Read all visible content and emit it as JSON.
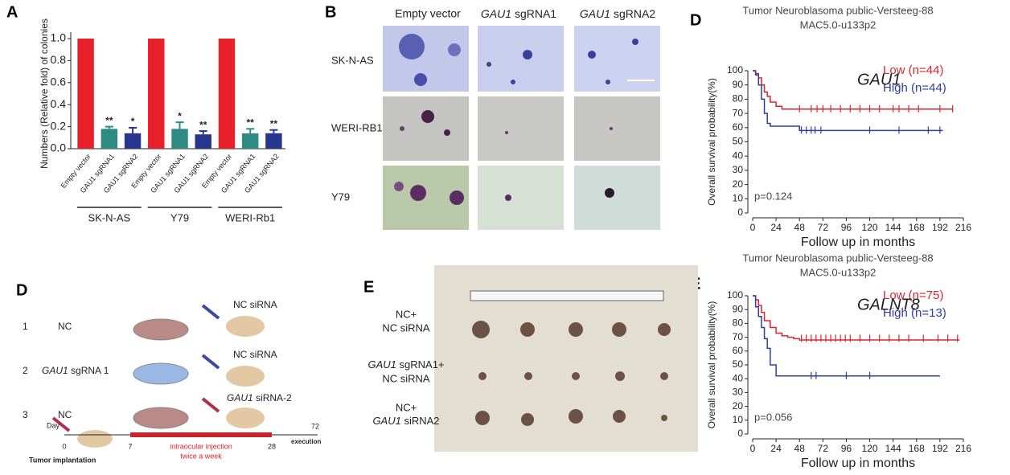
{
  "figure": {
    "panel_labels": {
      "a": "A",
      "b": "B",
      "d_km": "D",
      "d_scheme": "D",
      "e_photo": "E",
      "e_km": "E"
    },
    "panel_b": {
      "columns": [
        {
          "text": "Empty vector"
        },
        {
          "gene": "GAU1",
          "rest": "sgRNA1"
        },
        {
          "gene": "GAU1",
          "rest": "sgRNA2"
        }
      ],
      "rows": [
        "SK-N-AS",
        "WERI-RB1",
        "Y79"
      ]
    },
    "panel_d": {
      "groups": [
        {
          "number": "1",
          "cells": "NC",
          "treatment": "NC siRNA"
        },
        {
          "number": "2",
          "cells_gene": "GAU1",
          "cells": "sgRNA 1",
          "treatment": "NC siRNA"
        },
        {
          "number": "3",
          "cells": "NC",
          "treatment_gene": "GAU1",
          "treatment": "siRNA-2"
        }
      ],
      "timeline": {
        "day": "Day",
        "days": [
          "0",
          "7",
          "28",
          "72"
        ],
        "start": "Tumor implantation",
        "injection": "intraocular injection",
        "frequency": "twice a week",
        "end": "execution"
      }
    },
    "panel_e": {
      "rows": [
        {
          "line1": "NC+",
          "line2": "NC siRNA"
        },
        {
          "line1_gene": "GAU1",
          "line1": "sgRNA1+",
          "line2": "NC siRNA"
        },
        {
          "line1": "NC+",
          "line2_gene": "GAU1",
          "line2": "siRNA2"
        }
      ]
    }
  },
  "chart_data": [
    {
      "type": "bar",
      "ylabel": "Numbers (Relative fold) of colonies",
      "categories": [
        "Empty vector",
        "GAU1 sgRNA1",
        "GAU1 sgRNA2",
        "Empty vector",
        "GAU1 sgRNA1",
        "GAU1 sgRNA2",
        "Empty vector",
        "GAU1 sgRNA1",
        "GAU1 sgRNA2"
      ],
      "values": [
        1.0,
        0.18,
        0.14,
        1.0,
        0.18,
        0.13,
        1.0,
        0.14,
        0.14
      ],
      "errors": [
        0,
        0.02,
        0.05,
        0,
        0.06,
        0.03,
        0,
        0.04,
        0.03
      ],
      "colors": [
        "#e8202a",
        "#2e8b84",
        "#28358c",
        "#e8202a",
        "#2e8b84",
        "#28358c",
        "#e8202a",
        "#2e8b84",
        "#28358c"
      ],
      "stars": [
        null,
        "**",
        "*",
        null,
        "*",
        "**",
        null,
        "**",
        "**"
      ],
      "groups": [
        "SK-N-AS",
        "Y79",
        "WERI-Rb1"
      ],
      "ylim": [
        0,
        1
      ],
      "yticks": [
        {
          "value": 0,
          "label": "0.0"
        },
        0.2,
        0.4,
        0.6,
        0.8,
        {
          "value": 1,
          "label": "1.0"
        }
      ]
    },
    {
      "type": "line",
      "step": true,
      "title": "Tumor Neuroblasoma public-Versteeg-88",
      "subtitle": "MAC5.0-u133p2",
      "gene": "GAU1",
      "p_value": "p=0.124",
      "xlabel": "Follow up in months",
      "ylabel": "Overall survival probability(%)",
      "legend": "upper right",
      "xlim": [
        0,
        216
      ],
      "ylim": [
        0,
        100
      ],
      "xticks": [
        0,
        24,
        48,
        72,
        96,
        120,
        144,
        168,
        192,
        216
      ],
      "yticks": [
        0,
        10,
        20,
        30,
        40,
        50,
        60,
        70,
        80,
        90,
        100
      ],
      "series": [
        {
          "name": "Low (n=44)",
          "color": "#d9262c",
          "x": [
            0,
            3,
            6,
            9,
            12,
            15,
            18,
            24,
            30,
            36,
            205
          ],
          "values": [
            100,
            98,
            95,
            90,
            85,
            82,
            78,
            75,
            73,
            73,
            73
          ],
          "censored": {
            "x": [
              48,
              60,
              66,
              72,
              80,
              90,
              100,
              110,
              120,
              130,
              144,
              150,
              160,
              170,
              192,
              205
            ],
            "values": [
              73,
              73,
              73,
              73,
              73,
              73,
              73,
              73,
              73,
              73,
              73,
              73,
              73,
              73,
              73,
              73
            ]
          }
        },
        {
          "name": "High (n=44)",
          "color": "#2f3e9e",
          "x": [
            0,
            3,
            6,
            9,
            12,
            15,
            18,
            24,
            36,
            48,
            195
          ],
          "values": [
            100,
            97,
            90,
            80,
            70,
            63,
            61,
            61,
            61,
            58,
            58
          ],
          "censored": {
            "x": [
              50,
              55,
              60,
              64,
              70,
              120,
              150,
              180,
              192
            ],
            "values": [
              58,
              58,
              58,
              58,
              58,
              58,
              58,
              58,
              58
            ]
          }
        }
      ]
    },
    {
      "type": "line",
      "step": true,
      "title": "Tumor Neuroblasoma public-Versteeg-88",
      "subtitle": "MAC5.0-u133p2",
      "gene": "GALNT8",
      "p_value": "p=0.056",
      "xlabel": "Follow up in months",
      "ylabel": "Overall survival probability(%)",
      "legend": "upper right",
      "xlim": [
        0,
        216
      ],
      "ylim": [
        0,
        100
      ],
      "xticks": [
        0,
        24,
        48,
        72,
        96,
        120,
        144,
        168,
        192,
        216
      ],
      "yticks": [
        0,
        10,
        20,
        30,
        40,
        50,
        60,
        70,
        80,
        90,
        100
      ],
      "series": [
        {
          "name": "Low (n=75)",
          "color": "#d9262c",
          "x": [
            0,
            3,
            6,
            9,
            12,
            18,
            24,
            30,
            36,
            42,
            48,
            212
          ],
          "values": [
            100,
            97,
            93,
            88,
            82,
            77,
            73,
            71,
            70,
            69,
            68,
            68
          ],
          "censored": {
            "x": [
              50,
              55,
              60,
              65,
              70,
              75,
              80,
              85,
              90,
              95,
              100,
              110,
              120,
              130,
              140,
              150,
              160,
              175,
              190,
              200,
              210
            ],
            "values": [
              69,
              69,
              69,
              69,
              69,
              69,
              69,
              69,
              69,
              69,
              69,
              69,
              69,
              69,
              69,
              69,
              69,
              69,
              69,
              69,
              69
            ]
          }
        },
        {
          "name": "High (n=13)",
          "color": "#2f3e9e",
          "x": [
            0,
            3,
            6,
            9,
            12,
            15,
            18,
            24,
            192
          ],
          "values": [
            100,
            92,
            85,
            77,
            69,
            62,
            50,
            42,
            42
          ],
          "censored": {
            "x": [
              60,
              65,
              96,
              120
            ],
            "values": [
              42,
              42,
              42,
              42
            ]
          }
        }
      ]
    }
  ]
}
